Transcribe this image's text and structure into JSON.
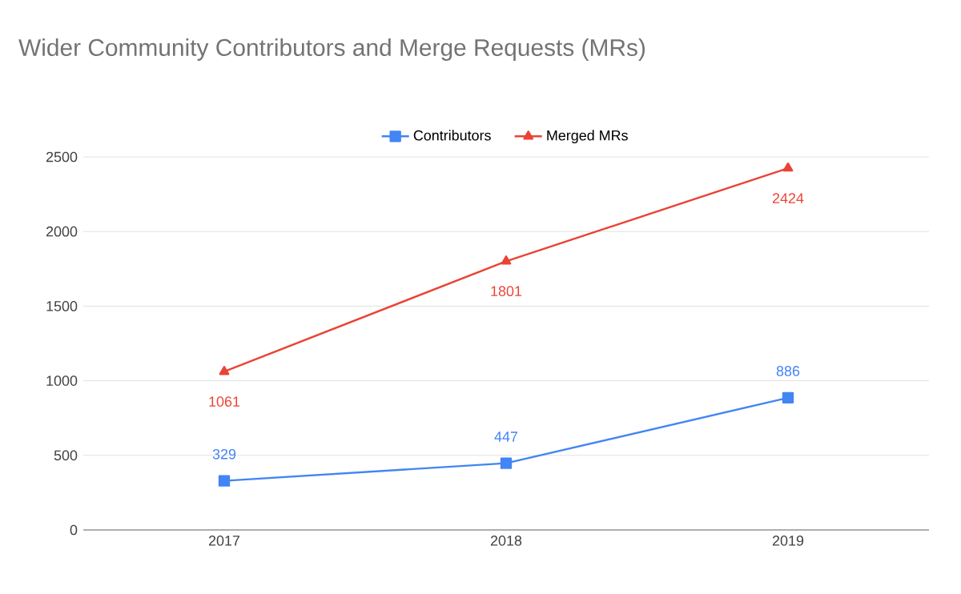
{
  "chart_data": {
    "type": "line",
    "title": "Wider Community Contributors and Merge Requests (MRs)",
    "categories": [
      "2017",
      "2018",
      "2019"
    ],
    "series": [
      {
        "name": "Contributors",
        "color": "#4285f4",
        "values": [
          329,
          447,
          886
        ],
        "marker": "square"
      },
      {
        "name": "Merged MRs",
        "color": "#ea4335",
        "values": [
          1061,
          1801,
          2424
        ],
        "marker": "triangle"
      }
    ],
    "ylim": [
      0,
      2500
    ],
    "yticks": [
      0,
      500,
      1000,
      1500,
      2000,
      2500
    ],
    "grid": "y",
    "legend": "top",
    "data_labels": true,
    "line_style": "solid"
  }
}
